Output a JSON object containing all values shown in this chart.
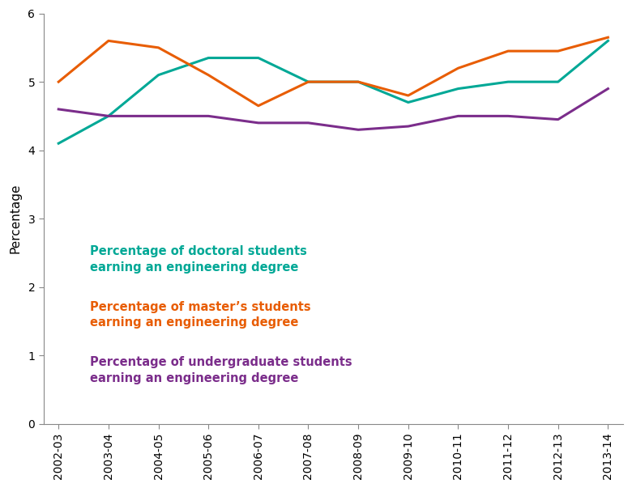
{
  "years": [
    "2002-03",
    "2003-04",
    "2004-05",
    "2005-06",
    "2006-07",
    "2007-08",
    "2008-09",
    "2009-10",
    "2010-11",
    "2011-12",
    "2012-13",
    "2013-14"
  ],
  "doctoral": [
    4.1,
    4.5,
    5.1,
    5.35,
    5.35,
    5.0,
    5.0,
    4.7,
    4.9,
    5.0,
    5.0,
    5.6
  ],
  "masters": [
    5.0,
    5.6,
    5.5,
    5.1,
    4.65,
    5.0,
    5.0,
    4.8,
    5.2,
    5.45,
    5.45,
    5.65
  ],
  "undergraduate": [
    4.6,
    4.5,
    4.5,
    4.5,
    4.4,
    4.4,
    4.3,
    4.35,
    4.5,
    4.5,
    4.45,
    4.9
  ],
  "doctoral_color": "#00A896",
  "masters_color": "#E85D04",
  "undergraduate_color": "#7B2D8B",
  "doctoral_label_line1": "Percentage of doctoral students",
  "doctoral_label_line2": "earning an engineering degree",
  "masters_label_line1": "Percentage of master’s students",
  "masters_label_line2": "earning an engineering degree",
  "undergraduate_label_line1": "Percentage of undergraduate students",
  "undergraduate_label_line2": "earning an engineering degree",
  "ylabel": "Percentage",
  "ylim": [
    0,
    6
  ],
  "yticks": [
    0,
    1,
    2,
    3,
    4,
    5,
    6
  ],
  "line_width": 2.2,
  "background_color": "#ffffff",
  "label_fontsize": 10.5,
  "tick_fontsize": 10,
  "ylabel_fontsize": 11
}
